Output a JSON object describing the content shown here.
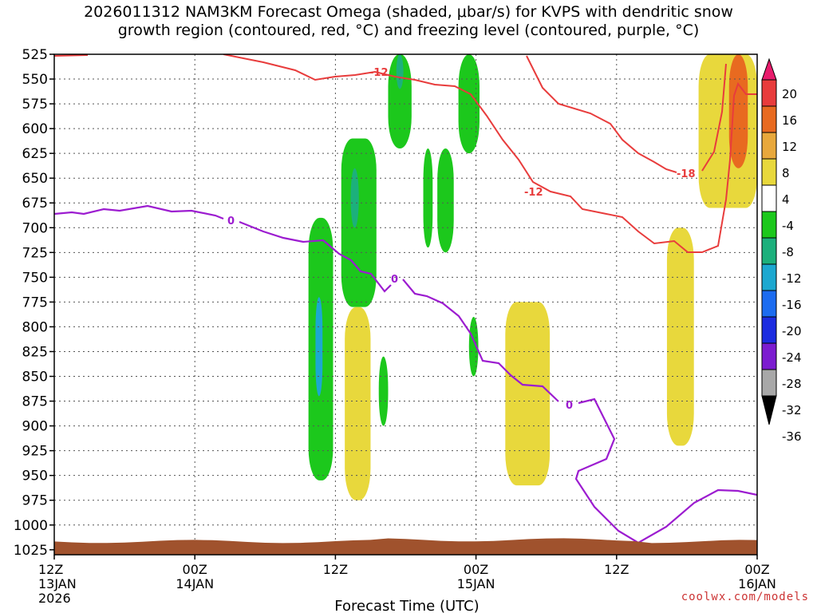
{
  "chart_data": {
    "type": "heatmap",
    "title_line1": "2026011312 NAM3KM Forecast Omega (shaded, μbar/s) for KVPS with dendritic snow",
    "title_line2": "growth region (contoured, red, °C) and freezing level (contoured, purple, °C)",
    "xlabel": "Forecast Time (UTC)",
    "x_ticks": [
      {
        "hour": 0,
        "label1": "12Z",
        "label2": "13JAN",
        "label3": "2026"
      },
      {
        "hour": 12,
        "label1": "00Z",
        "label2": "14JAN",
        "label3": ""
      },
      {
        "hour": 24,
        "label1": "12Z",
        "label2": "",
        "label3": ""
      },
      {
        "hour": 36,
        "label1": "00Z",
        "label2": "15JAN",
        "label3": ""
      },
      {
        "hour": 48,
        "label1": "12Z",
        "label2": "",
        "label3": ""
      },
      {
        "hour": 60,
        "label1": "00Z",
        "label2": "16JAN",
        "label3": ""
      }
    ],
    "xlim_hours": [
      0,
      60
    ],
    "y_ticks": [
      525,
      550,
      575,
      600,
      625,
      650,
      675,
      700,
      725,
      750,
      775,
      800,
      825,
      850,
      875,
      900,
      925,
      950,
      975,
      1000,
      1025
    ],
    "ylim_hPa": [
      525,
      1030
    ],
    "ylabel": "",
    "grid": true,
    "colorbar": {
      "labels": [
        "20",
        "16",
        "12",
        "8",
        "4",
        "-4",
        "-8",
        "-12",
        "-16",
        "-20",
        "-24",
        "-28",
        "-32",
        "-36"
      ],
      "colors": [
        "#e81c6c",
        "#e83c3c",
        "#e86a20",
        "#e8a83c",
        "#e8d83c",
        "#ffffff",
        "#1cc81c",
        "#1cb07c",
        "#1ca8d0",
        "#1c6cf0",
        "#1c2ce0",
        "#7c1cd0",
        "#a8a8a8",
        "#000000"
      ]
    },
    "contour_labels": {
      "red": [
        "-12",
        "-12",
        "-18"
      ],
      "purple": [
        "0",
        "0",
        "0"
      ]
    },
    "omega_regions": [
      {
        "level": "-8",
        "color": "#1cc81c",
        "t_range": [
          28.5,
          30.5
        ],
        "p_range": [
          525,
          620
        ]
      },
      {
        "level": "-12",
        "color": "#1cb07c",
        "t_range": [
          29.2,
          29.8
        ],
        "p_range": [
          525,
          560
        ]
      },
      {
        "level": "-8",
        "color": "#1cc81c",
        "t_range": [
          34.5,
          36.3
        ],
        "p_range": [
          525,
          625
        ]
      },
      {
        "level": "-8",
        "color": "#1cc81c",
        "t_range": [
          24.5,
          27.5
        ],
        "p_range": [
          610,
          780
        ]
      },
      {
        "level": "-12",
        "color": "#1cb07c",
        "t_range": [
          25.3,
          26.0
        ],
        "p_range": [
          640,
          700
        ]
      },
      {
        "level": "-8",
        "color": "#1cc81c",
        "t_range": [
          21.7,
          23.8
        ],
        "p_range": [
          690,
          955
        ]
      },
      {
        "level": "-16",
        "color": "#1ca8d0",
        "t_range": [
          22.3,
          22.9
        ],
        "p_range": [
          770,
          870
        ]
      },
      {
        "level": "-8",
        "color": "#1cc81c",
        "t_range": [
          31.5,
          32.3
        ],
        "p_range": [
          620,
          720
        ]
      },
      {
        "level": "-8",
        "color": "#1cc81c",
        "t_range": [
          32.7,
          34.1
        ],
        "p_range": [
          620,
          725
        ]
      },
      {
        "level": "-8",
        "color": "#1cc81c",
        "t_range": [
          35.4,
          36.2
        ],
        "p_range": [
          790,
          850
        ]
      },
      {
        "level": "-8",
        "color": "#1cc81c",
        "t_range": [
          27.7,
          28.5
        ],
        "p_range": [
          830,
          900
        ]
      },
      {
        "level": "4",
        "color": "#e8d83c",
        "t_range": [
          55.0,
          60.0
        ],
        "p_range": [
          525,
          680
        ]
      },
      {
        "level": "12",
        "color": "#e86a20",
        "t_range": [
          57.6,
          59.2
        ],
        "p_range": [
          525,
          640
        ]
      },
      {
        "level": "4",
        "color": "#e8d83c",
        "t_range": [
          38.5,
          42.3
        ],
        "p_range": [
          775,
          960
        ]
      },
      {
        "level": "4",
        "color": "#e8d83c",
        "t_range": [
          52.3,
          54.6
        ],
        "p_range": [
          700,
          920
        ]
      },
      {
        "level": "4",
        "color": "#e8d83c",
        "t_range": [
          24.8,
          27.0
        ],
        "p_range": [
          780,
          975
        ]
      }
    ],
    "surface_hPa_range": [
      1015,
      1030
    ]
  }
}
